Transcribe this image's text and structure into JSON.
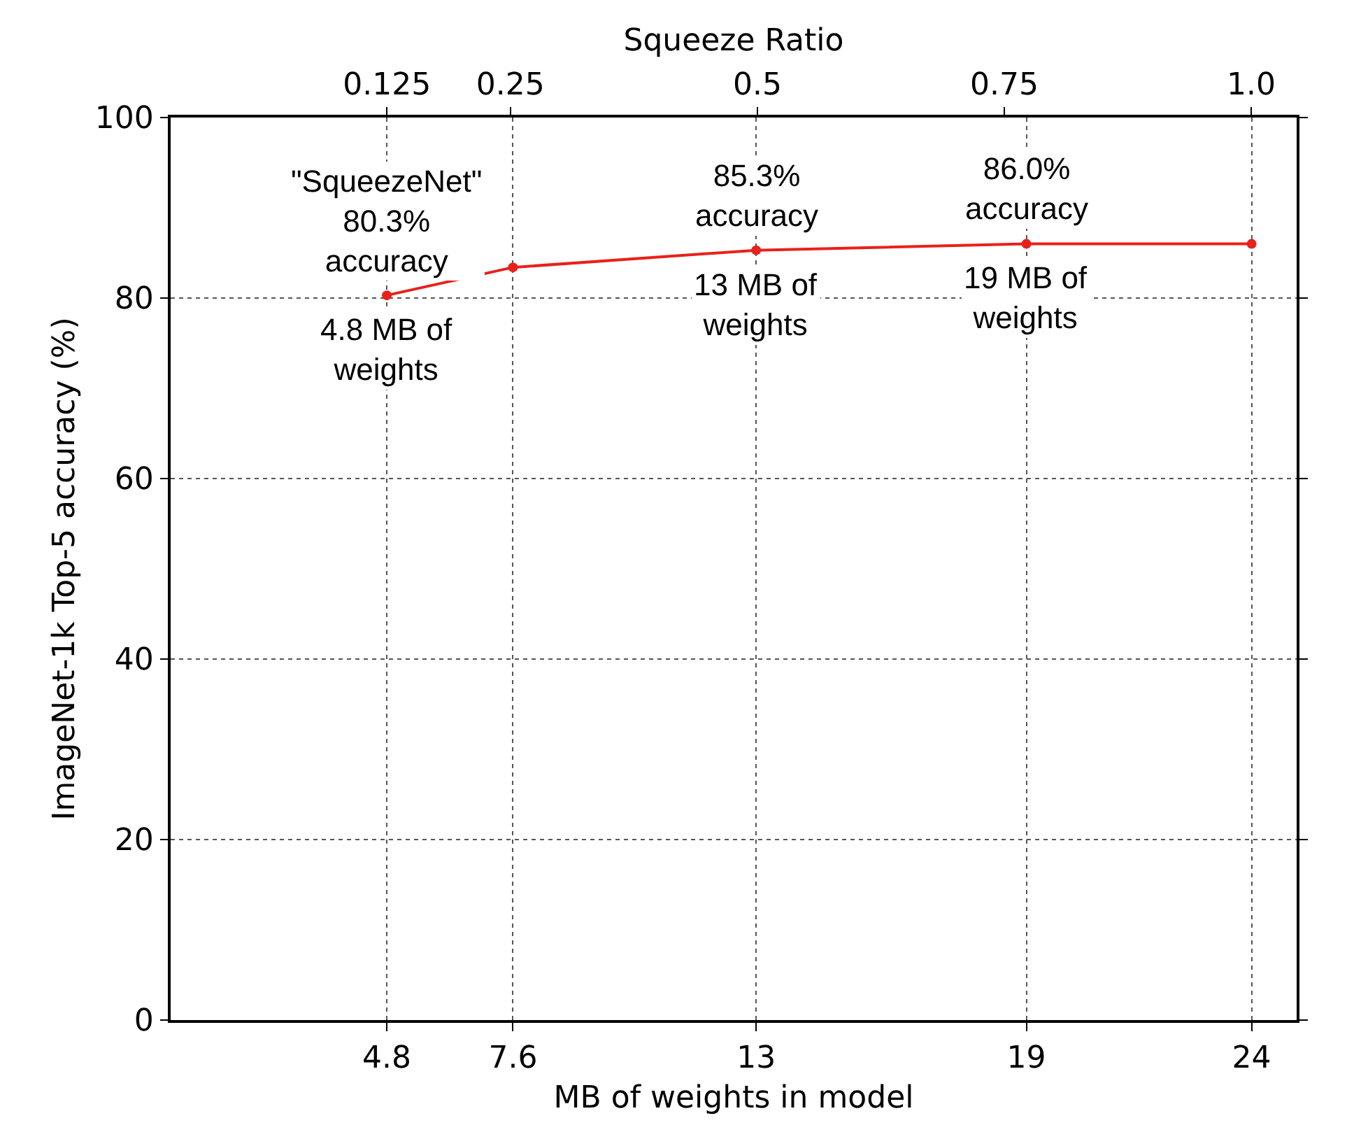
{
  "chart_data": {
    "type": "line",
    "xlabel": "MB of weights in model",
    "ylabel": "ImageNet-1k Top-5 accuracy (%)",
    "x2label": "Squeeze Ratio",
    "x": [
      4.8,
      7.6,
      13,
      19,
      24
    ],
    "series": [
      {
        "color": "#e8211b",
        "values": [
          80.3,
          83.4,
          85.3,
          86.0,
          86.0
        ]
      }
    ],
    "xlim": [
      0,
      25
    ],
    "xticks": [
      4.8,
      7.6,
      13,
      19,
      24
    ],
    "x2lim": [
      -0.094,
      1.046
    ],
    "x2ticks": [
      0.125,
      0.25,
      0.5,
      0.75,
      {
        "value": 1.0,
        "label": "1.0"
      }
    ],
    "ylim": [
      0,
      100
    ],
    "yticks": [
      0,
      20,
      40,
      60,
      80,
      100
    ],
    "grid": true,
    "marker": "circle",
    "line_style": "solid",
    "annotations": [
      {
        "text": "\"SqueezeNet\"\n80.3%\naccuracy",
        "x": 4.8,
        "y": 80.3
      },
      {
        "text": "4.8 MB of\nweights",
        "x": 4.8,
        "y": 80.3
      },
      {
        "text": "85.3%\naccuracy",
        "x": 13,
        "y": 85.3
      },
      {
        "text": "13 MB of\nweights",
        "x": 13,
        "y": 85.3
      },
      {
        "text": "86.0%\naccuracy",
        "x": 19,
        "y": 86.0
      },
      {
        "text": "19 MB of\nweights",
        "x": 19,
        "y": 86.0
      }
    ]
  }
}
